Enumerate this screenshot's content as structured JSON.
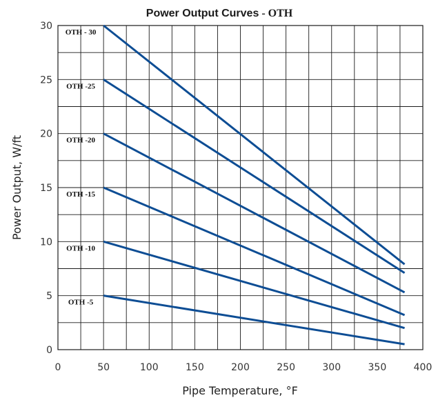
{
  "chart_data": {
    "type": "line",
    "title": "Power Output Curves",
    "title_suffix": " - OTH",
    "xlabel": "Pipe Temperature, °F",
    "ylabel": "Power Output, W/ft",
    "xlim": [
      0,
      400
    ],
    "ylim": [
      0,
      30
    ],
    "x_ticks": [
      0,
      50,
      100,
      150,
      200,
      250,
      300,
      350,
      400
    ],
    "y_ticks": [
      0,
      5,
      10,
      15,
      20,
      25,
      30
    ],
    "grid": true,
    "x_grid_step": 25,
    "y_grid_step": 2.5,
    "line_color": "#0d4d94",
    "series": [
      {
        "name": "OTH - 30",
        "x": [
          50,
          380
        ],
        "y": [
          30,
          7.9
        ]
      },
      {
        "name": "OTH -25",
        "x": [
          50,
          380
        ],
        "y": [
          25,
          7.1
        ]
      },
      {
        "name": "OTH -20",
        "x": [
          50,
          380
        ],
        "y": [
          20,
          5.3
        ]
      },
      {
        "name": "OTH -15",
        "x": [
          50,
          380
        ],
        "y": [
          15,
          3.2
        ]
      },
      {
        "name": "OTH -10",
        "x": [
          50,
          380
        ],
        "y": [
          10,
          2.0
        ]
      },
      {
        "name": "OTH -5",
        "x": [
          50,
          380
        ],
        "y": [
          5,
          0.5
        ]
      }
    ]
  }
}
